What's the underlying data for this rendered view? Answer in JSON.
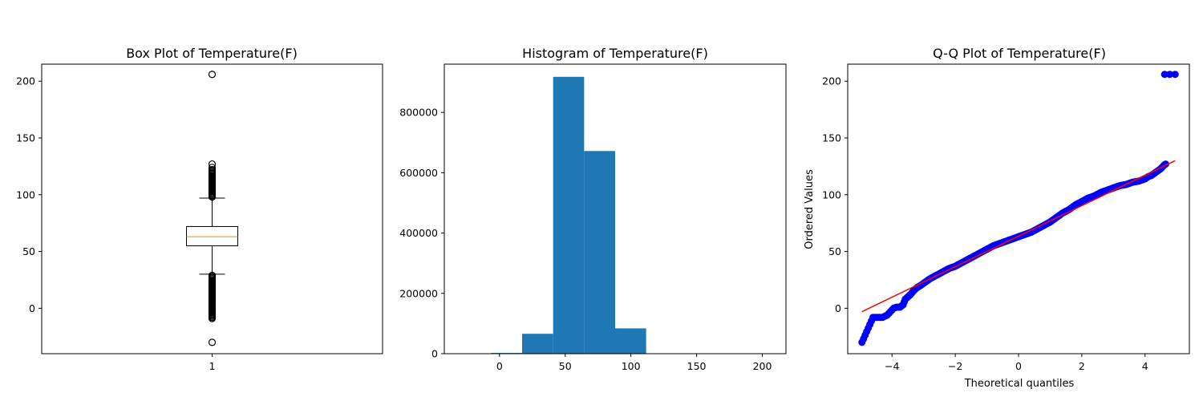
{
  "colors": {
    "bar": "#1f77b4",
    "median": "#ff7f0e",
    "points": "#0000ff",
    "fit_line": "#ff0000"
  },
  "chart_data": [
    {
      "type": "box",
      "title": "Box Plot of Temperature(F)",
      "xlabel": "",
      "ylabel": "",
      "categories": [
        "1"
      ],
      "ylim": [
        -40,
        215
      ],
      "yticks": [
        0,
        50,
        100,
        150,
        200
      ],
      "stats": {
        "q1": 55,
        "median": 63,
        "q3": 72,
        "whisker_low": 30,
        "whisker_high": 97
      },
      "fliers_high": [
        98,
        99,
        100,
        101,
        102,
        103,
        104,
        105,
        106,
        107,
        108,
        109,
        110,
        111,
        112,
        113,
        114,
        115,
        116,
        117,
        118,
        119,
        120,
        121,
        122,
        124,
        127,
        206
      ],
      "fliers_low": [
        -30,
        -9,
        -8,
        -7,
        -6,
        -5,
        -4,
        -3,
        -2,
        -1,
        0,
        1,
        2,
        3,
        4,
        5,
        6,
        7,
        8,
        9,
        10,
        11,
        12,
        13,
        14,
        15,
        16,
        17,
        18,
        19,
        20,
        21,
        22,
        23,
        24,
        25,
        26,
        27,
        28,
        29
      ]
    },
    {
      "type": "bar",
      "title": "Histogram of Temperature(F)",
      "xlabel": "",
      "ylabel": "",
      "bin_edges": [
        -30,
        -6.4,
        17.2,
        40.8,
        64.4,
        88,
        111.6,
        135.2,
        158.8,
        182.4,
        206
      ],
      "values": [
        1,
        2400,
        66000,
        918000,
        672000,
        84000,
        600,
        0,
        0,
        30
      ],
      "xlim": [
        -42,
        218
      ],
      "ylim": [
        0,
        960000
      ],
      "xticks": [
        0,
        50,
        100,
        150,
        200
      ],
      "yticks": [
        0,
        200000,
        400000,
        600000,
        800000
      ]
    },
    {
      "type": "scatter",
      "title": "Q-Q Plot of Temperature(F)",
      "xlabel": "Theoretical quantiles",
      "ylabel": "Ordered Values",
      "xlim": [
        -5.4,
        5.4
      ],
      "ylim": [
        -40,
        215
      ],
      "xticks": [
        -4,
        -2,
        0,
        2,
        4
      ],
      "yticks": [
        0,
        50,
        100,
        150,
        200
      ],
      "points": [
        [
          -4.95,
          -30
        ],
        [
          -4.6,
          -8
        ],
        [
          -4.45,
          -8
        ],
        [
          -4.3,
          -8
        ],
        [
          -4.15,
          -6
        ],
        [
          -4.05,
          -3
        ],
        [
          -3.95,
          0
        ],
        [
          -3.85,
          1
        ],
        [
          -3.75,
          1
        ],
        [
          -3.65,
          3
        ],
        [
          -3.58,
          8
        ],
        [
          -3.5,
          10
        ],
        [
          -3.42,
          12
        ],
        [
          -3.33,
          15
        ],
        [
          -3.22,
          18
        ],
        [
          -3.1,
          20
        ],
        [
          -2.95,
          23
        ],
        [
          -2.8,
          26
        ],
        [
          -2.6,
          29
        ],
        [
          -2.4,
          32
        ],
        [
          -2.2,
          35
        ],
        [
          -2.0,
          37
        ],
        [
          -1.8,
          40
        ],
        [
          -1.6,
          43
        ],
        [
          -1.4,
          46
        ],
        [
          -1.2,
          49
        ],
        [
          -1.0,
          52
        ],
        [
          -0.8,
          55
        ],
        [
          -0.6,
          57
        ],
        [
          -0.4,
          59
        ],
        [
          -0.2,
          61
        ],
        [
          0.0,
          63
        ],
        [
          0.2,
          65
        ],
        [
          0.4,
          67
        ],
        [
          0.6,
          70
        ],
        [
          0.8,
          73
        ],
        [
          1.0,
          76
        ],
        [
          1.2,
          80
        ],
        [
          1.4,
          84
        ],
        [
          1.6,
          87
        ],
        [
          1.8,
          91
        ],
        [
          2.0,
          94
        ],
        [
          2.2,
          97
        ],
        [
          2.4,
          99
        ],
        [
          2.6,
          102
        ],
        [
          2.8,
          104
        ],
        [
          3.0,
          106
        ],
        [
          3.2,
          108
        ],
        [
          3.4,
          109
        ],
        [
          3.6,
          111
        ],
        [
          3.8,
          112
        ],
        [
          4.0,
          114
        ],
        [
          4.1,
          116
        ],
        [
          4.2,
          117
        ],
        [
          4.3,
          119
        ],
        [
          4.4,
          121
        ],
        [
          4.5,
          123
        ],
        [
          4.6,
          126
        ],
        [
          4.65,
          127
        ],
        [
          4.62,
          206
        ],
        [
          4.78,
          206
        ],
        [
          4.95,
          206
        ]
      ],
      "fit_line": [
        [
          -4.95,
          -3
        ],
        [
          4.95,
          130
        ]
      ]
    }
  ]
}
